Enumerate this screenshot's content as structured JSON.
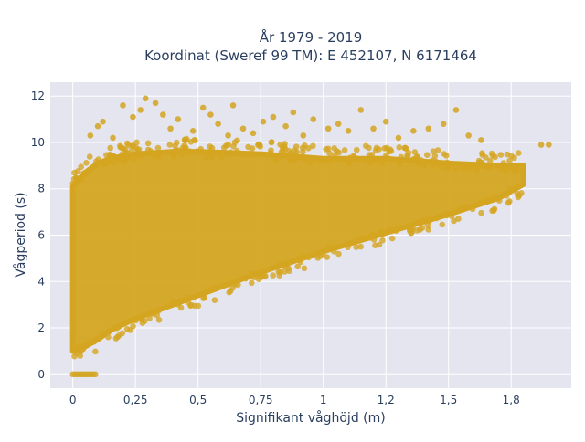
{
  "chart_data": {
    "type": "scatter",
    "title": [
      "År 1979 - 2019",
      "Koordinat (Sweref 99 TM): E 452107, N 6171464"
    ],
    "xlabel": "Signifikant våghöjd (m)",
    "ylabel": "Vågperiod (s)",
    "xlim": [
      -0.09,
      1.99
    ],
    "ylim": [
      -0.6,
      12.6
    ],
    "x_ticks": [
      0,
      0.25,
      0.5,
      0.75,
      1,
      1.25,
      1.5,
      1.75
    ],
    "x_tick_labels": [
      "0",
      "0,25",
      "0,5",
      "0,75",
      "1",
      "1,2",
      "1,5",
      "1,8"
    ],
    "y_ticks": [
      0,
      2,
      4,
      6,
      8,
      10,
      12
    ],
    "y_tick_labels": [
      "0",
      "2",
      "4",
      "6",
      "8",
      "10",
      "12"
    ],
    "grid": true,
    "marker_color": "#d4a520",
    "plot_background": "#e5e5f0",
    "series": [
      {
        "points_description": "dense cloud",
        "core_envelope": {
          "x": [
            0.0,
            0.05,
            0.1,
            0.15,
            0.25,
            0.4,
            0.5,
            0.75,
            1.0,
            1.25,
            1.5,
            1.7,
            1.8
          ],
          "y_low": [
            1.0,
            1.2,
            1.5,
            1.9,
            2.4,
            3.0,
            3.4,
            4.4,
            5.3,
            6.1,
            6.9,
            7.6,
            8.2
          ],
          "y_high": [
            8.1,
            8.7,
            9.1,
            9.3,
            9.5,
            9.6,
            9.6,
            9.5,
            9.3,
            9.3,
            9.1,
            9.0,
            9.0
          ]
        },
        "outliers": [
          [
            0.07,
            10.3
          ],
          [
            0.1,
            10.7
          ],
          [
            0.12,
            10.9
          ],
          [
            0.16,
            10.2
          ],
          [
            0.2,
            11.6
          ],
          [
            0.24,
            11.1
          ],
          [
            0.27,
            11.4
          ],
          [
            0.29,
            11.9
          ],
          [
            0.33,
            11.7
          ],
          [
            0.36,
            11.2
          ],
          [
            0.39,
            10.6
          ],
          [
            0.42,
            11.0
          ],
          [
            0.45,
            10.1
          ],
          [
            0.48,
            10.5
          ],
          [
            0.52,
            11.5
          ],
          [
            0.55,
            11.2
          ],
          [
            0.58,
            10.8
          ],
          [
            0.62,
            10.3
          ],
          [
            0.64,
            11.6
          ],
          [
            0.68,
            10.6
          ],
          [
            0.72,
            10.4
          ],
          [
            0.76,
            10.9
          ],
          [
            0.8,
            11.1
          ],
          [
            0.85,
            10.7
          ],
          [
            0.88,
            11.3
          ],
          [
            0.92,
            10.3
          ],
          [
            0.96,
            11.0
          ],
          [
            1.02,
            10.6
          ],
          [
            1.06,
            10.8
          ],
          [
            1.1,
            10.5
          ],
          [
            1.15,
            11.4
          ],
          [
            1.2,
            10.6
          ],
          [
            1.25,
            10.9
          ],
          [
            1.3,
            10.2
          ],
          [
            1.36,
            10.5
          ],
          [
            1.42,
            10.6
          ],
          [
            1.48,
            10.8
          ],
          [
            1.53,
            11.4
          ],
          [
            1.58,
            10.3
          ],
          [
            1.63,
            10.1
          ],
          [
            1.87,
            9.9
          ],
          [
            1.9,
            9.9
          ]
        ],
        "zero_period_points_x": [
          0.0,
          0.01,
          0.02,
          0.03,
          0.04,
          0.05,
          0.06,
          0.07,
          0.08,
          0.09
        ]
      }
    ]
  }
}
